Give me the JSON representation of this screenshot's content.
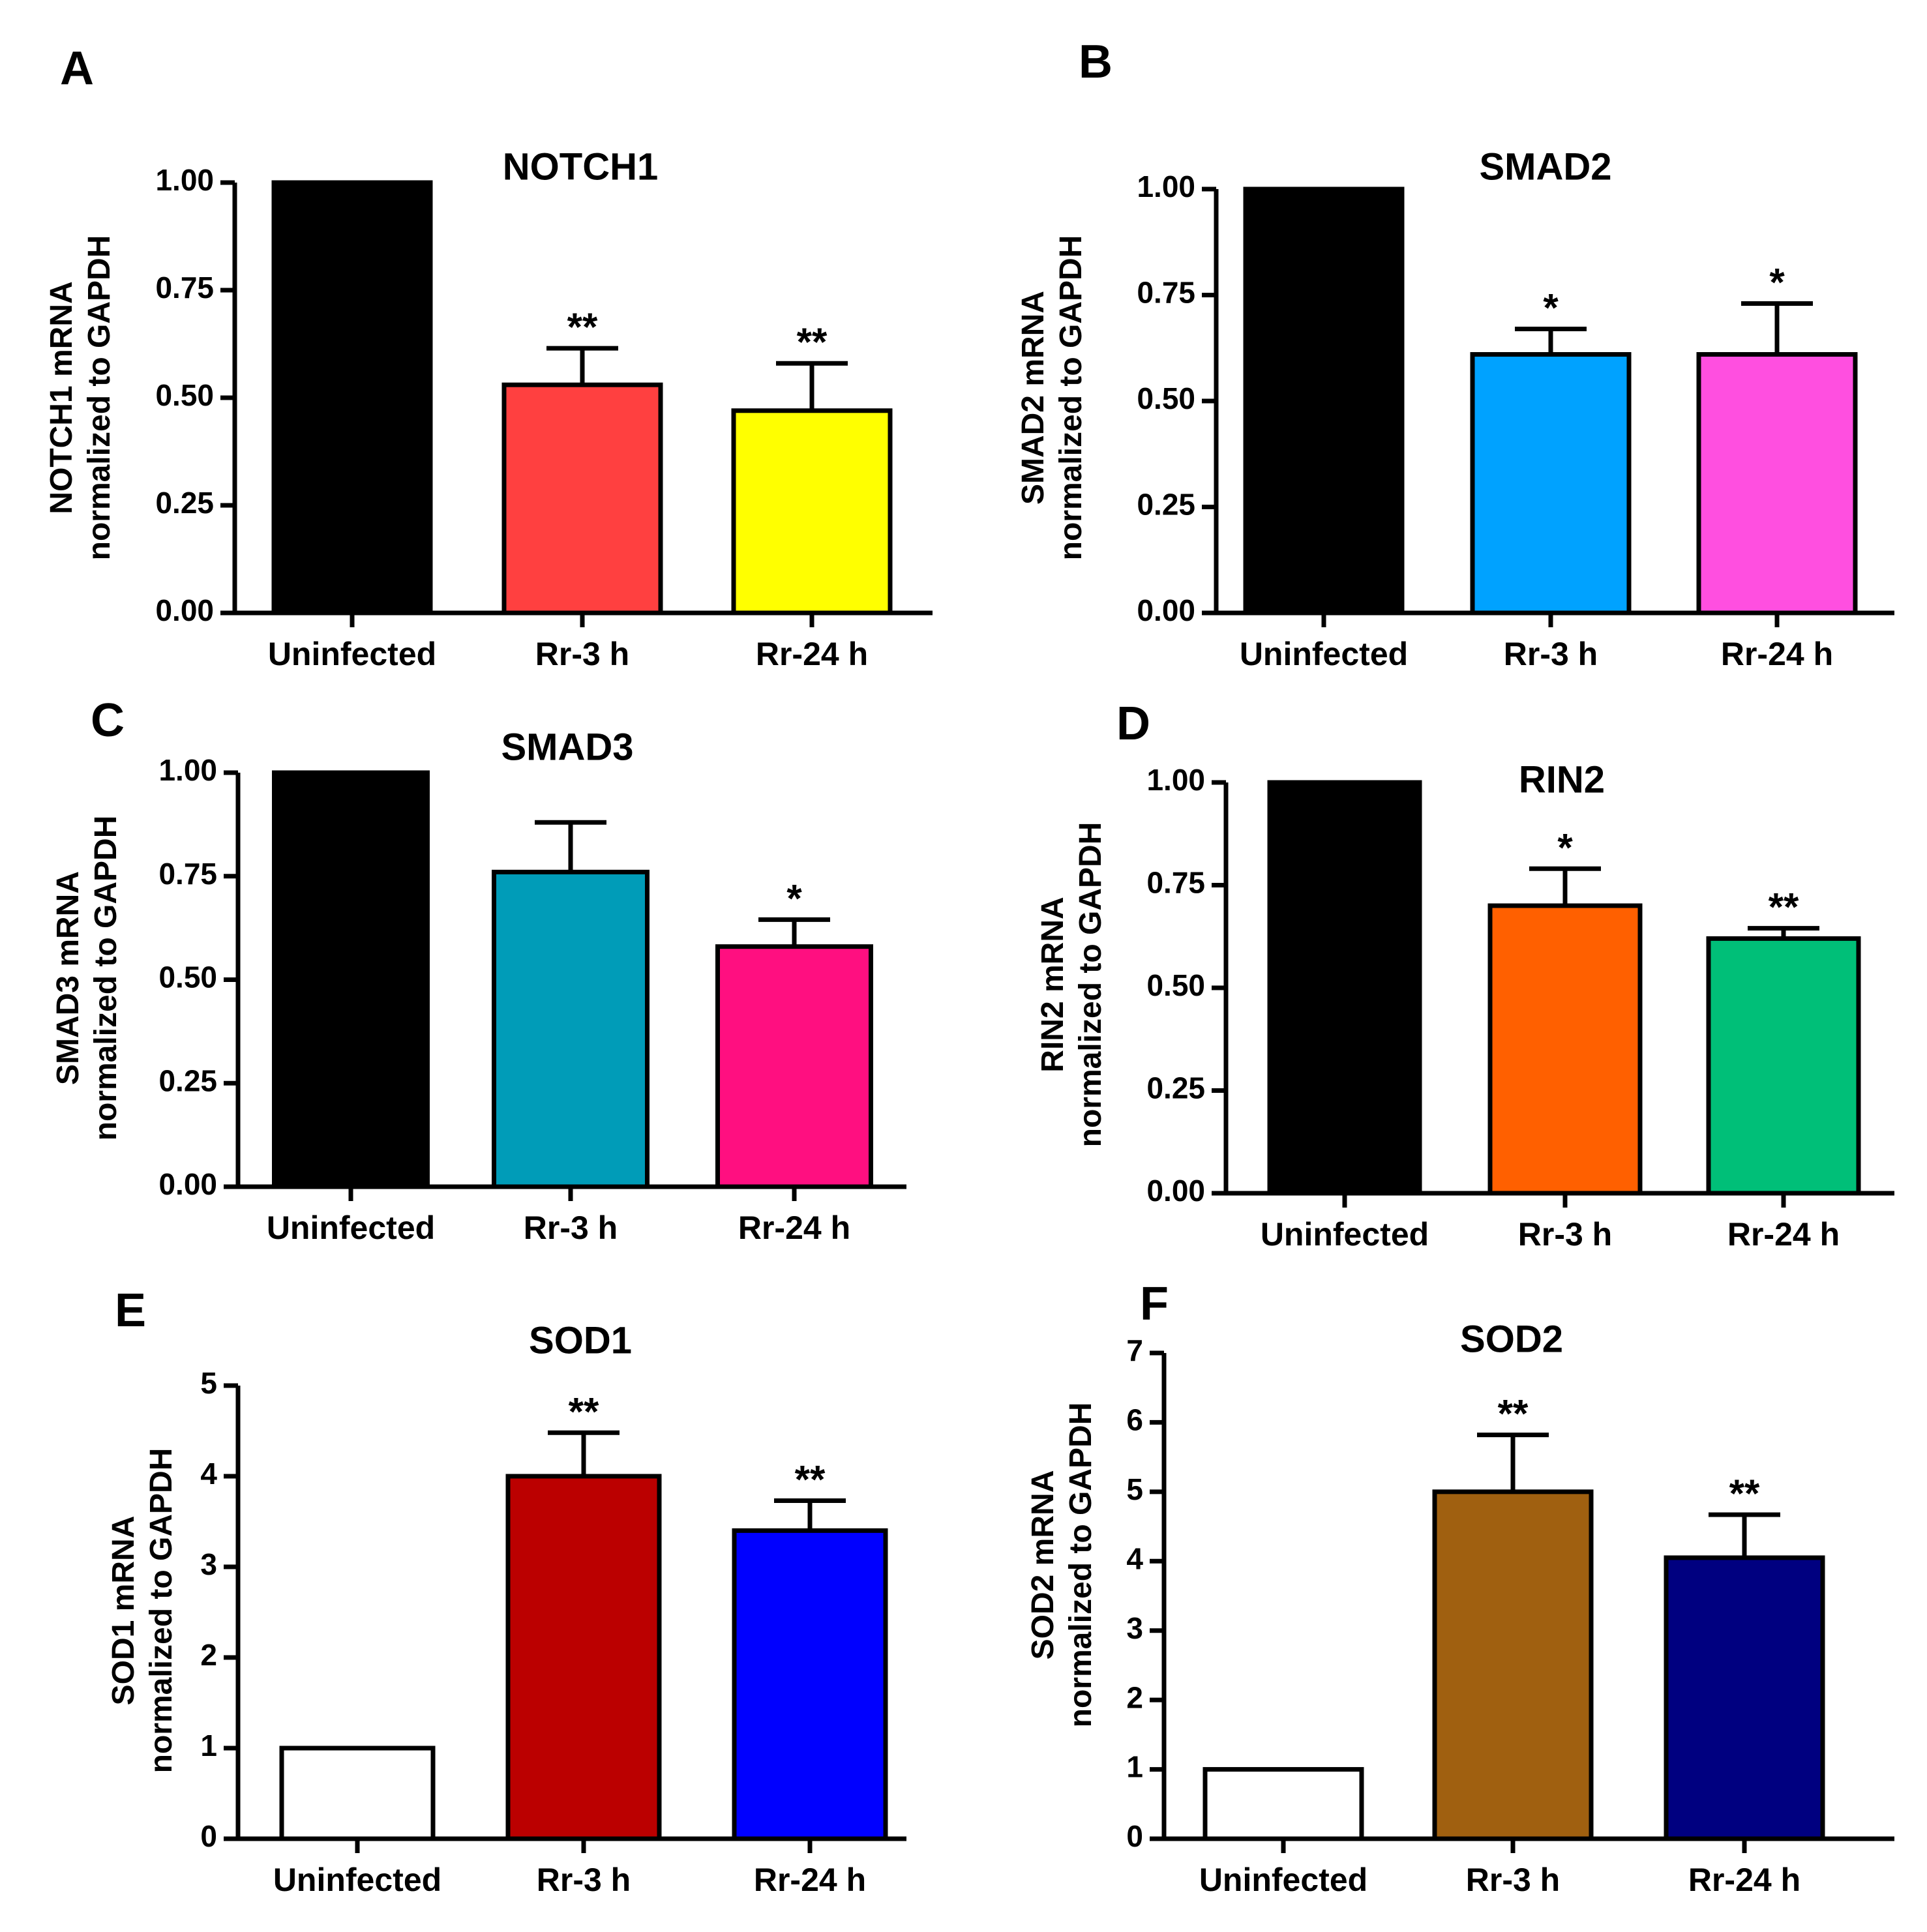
{
  "chart_data": [
    {
      "type": "bar",
      "panel": "A",
      "title": "NOTCH1",
      "ylabel": [
        "NOTCH1 mRNA",
        "normalized to GAPDH"
      ],
      "xlabel": "",
      "categories": [
        "Uninfected",
        "Rr-3 h",
        "Rr-24 h"
      ],
      "values": [
        1.0,
        0.53,
        0.47
      ],
      "errors": [
        0,
        0.085,
        0.11
      ],
      "significance": [
        "",
        "**",
        "**"
      ],
      "colors": [
        "#000000",
        "#ff4040",
        "#ffff00"
      ],
      "ylim": [
        0,
        1.0
      ],
      "yticks": [
        0,
        0.25,
        0.5,
        0.75,
        1.0
      ],
      "ytick_labels": [
        "0.00",
        "0.25",
        "0.50",
        "0.75",
        "1.00"
      ],
      "grid": false
    },
    {
      "type": "bar",
      "panel": "B",
      "title": "SMAD2",
      "ylabel": [
        "SMAD2 mRNA",
        "normalized to GAPDH"
      ],
      "xlabel": "",
      "categories": [
        "Uninfected",
        "Rr-3 h",
        "Rr-24 h"
      ],
      "values": [
        1.0,
        0.61,
        0.61
      ],
      "errors": [
        0,
        0.06,
        0.12
      ],
      "significance": [
        "",
        "*",
        "*"
      ],
      "colors": [
        "#000000",
        "#00a2ff",
        "#ff4fe0"
      ],
      "ylim": [
        0,
        1.0
      ],
      "yticks": [
        0,
        0.25,
        0.5,
        0.75,
        1.0
      ],
      "ytick_labels": [
        "0.00",
        "0.25",
        "0.50",
        "0.75",
        "1.00"
      ],
      "grid": false
    },
    {
      "type": "bar",
      "panel": "C",
      "title": "SMAD3",
      "ylabel": [
        "SMAD3 mRNA",
        "normalized to GAPDH"
      ],
      "xlabel": "",
      "categories": [
        "Uninfected",
        "Rr-3 h",
        "Rr-24 h"
      ],
      "values": [
        1.0,
        0.76,
        0.58
      ],
      "errors": [
        0,
        0.12,
        0.065
      ],
      "significance": [
        "",
        "",
        "*"
      ],
      "colors": [
        "#000000",
        "#009cb8",
        "#ff0f80"
      ],
      "ylim": [
        0,
        1.0
      ],
      "yticks": [
        0,
        0.25,
        0.5,
        0.75,
        1.0
      ],
      "ytick_labels": [
        "0.00",
        "0.25",
        "0.50",
        "0.75",
        "1.00"
      ],
      "grid": false
    },
    {
      "type": "bar",
      "panel": "D",
      "title": "RIN2",
      "ylabel": [
        "RIN2 mRNA",
        "normalized to GAPDH"
      ],
      "xlabel": "",
      "categories": [
        "Uninfected",
        "Rr-3 h",
        "Rr-24 h"
      ],
      "values": [
        1.0,
        0.7,
        0.62
      ],
      "errors": [
        0,
        0.09,
        0.025
      ],
      "significance": [
        "",
        "*",
        "**"
      ],
      "colors": [
        "#000000",
        "#ff6000",
        "#00bf78"
      ],
      "ylim": [
        0,
        1.0
      ],
      "yticks": [
        0,
        0.25,
        0.5,
        0.75,
        1.0
      ],
      "ytick_labels": [
        "0.00",
        "0.25",
        "0.50",
        "0.75",
        "1.00"
      ],
      "grid": false
    },
    {
      "type": "bar",
      "panel": "E",
      "title": "SOD1",
      "ylabel": [
        "SOD1 mRNA",
        "normalized to GAPDH"
      ],
      "xlabel": "",
      "categories": [
        "Uninfected",
        "Rr-3 h",
        "Rr-24 h"
      ],
      "values": [
        1.0,
        4.0,
        3.4
      ],
      "errors": [
        0,
        0.48,
        0.33
      ],
      "significance": [
        "",
        "**",
        "**"
      ],
      "colors": [
        "#ffffff",
        "#bb0000",
        "#0000ff"
      ],
      "ylim": [
        0,
        5
      ],
      "yticks": [
        0,
        1,
        2,
        3,
        4,
        5
      ],
      "ytick_labels": [
        "0",
        "1",
        "2",
        "3",
        "4",
        "5"
      ],
      "grid": false
    },
    {
      "type": "bar",
      "panel": "F",
      "title": "SOD2",
      "ylabel": [
        "SOD2 mRNA",
        "normalized to GAPDH"
      ],
      "xlabel": "",
      "categories": [
        "Uninfected",
        "Rr-3 h",
        "Rr-24 h"
      ],
      "values": [
        1.0,
        5.0,
        4.05
      ],
      "errors": [
        0,
        0.82,
        0.62
      ],
      "significance": [
        "",
        "**",
        "**"
      ],
      "colors": [
        "#ffffff",
        "#a06010",
        "#000080"
      ],
      "ylim": [
        0,
        7
      ],
      "yticks": [
        0,
        1,
        2,
        3,
        4,
        5,
        6,
        7
      ],
      "ytick_labels": [
        "0",
        "1",
        "2",
        "3",
        "4",
        "5",
        "6",
        "7"
      ],
      "grid": false
    }
  ]
}
